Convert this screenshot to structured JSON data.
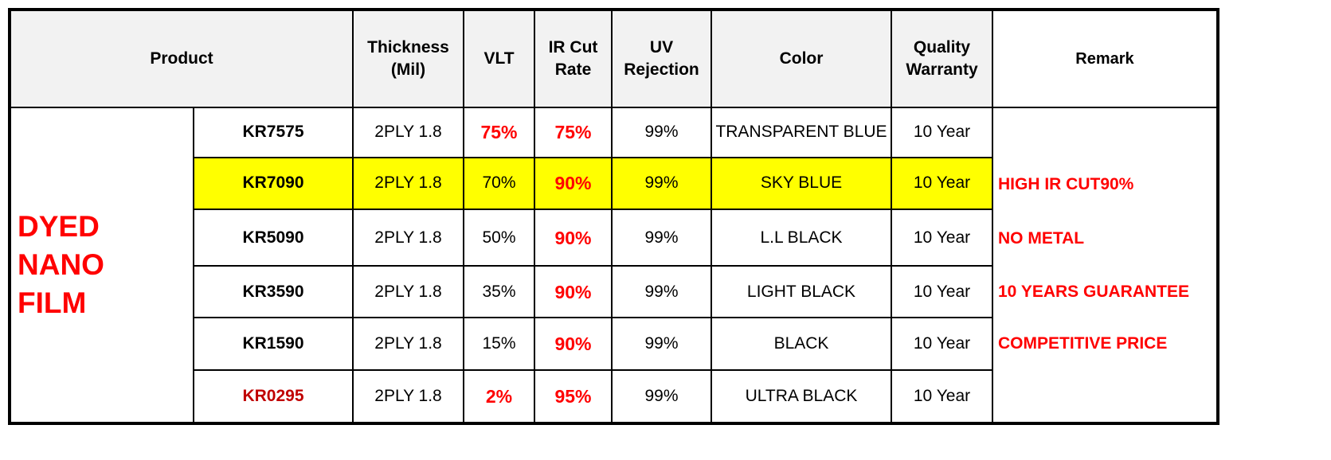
{
  "headers": {
    "product": "Product",
    "thickness_line1": "Thickness",
    "thickness_line2": "(Mil)",
    "vlt": "VLT",
    "ircut_line1": "IR Cut",
    "ircut_line2": "Rate",
    "uv_line1": "UV",
    "uv_line2": "Rejection",
    "color": "Color",
    "warranty_line1": "Quality",
    "warranty_line2": "Warranty",
    "remark": "Remark"
  },
  "category": {
    "line1": "DYED",
    "line2": "NANO",
    "line3": "FILM"
  },
  "rows": [
    {
      "code": "KR7575",
      "thickness": "2PLY 1.8",
      "vlt": "75%",
      "ircut": "75%",
      "uv": "99%",
      "color": "TRANSPARENT BLUE",
      "warranty": "10 Year"
    },
    {
      "code": "KR7090",
      "thickness": "2PLY 1.8",
      "vlt": "70%",
      "ircut": "90%",
      "uv": "99%",
      "color": "SKY BLUE",
      "warranty": "10 Year"
    },
    {
      "code": "KR5090",
      "thickness": "2PLY 1.8",
      "vlt": "50%",
      "ircut": "90%",
      "uv": "99%",
      "color": "L.L BLACK",
      "warranty": "10 Year"
    },
    {
      "code": "KR3590",
      "thickness": "2PLY 1.8",
      "vlt": "35%",
      "ircut": "90%",
      "uv": "99%",
      "color": "LIGHT BLACK",
      "warranty": "10 Year"
    },
    {
      "code": "KR1590",
      "thickness": "2PLY 1.8",
      "vlt": "15%",
      "ircut": "90%",
      "uv": "99%",
      "color": "BLACK",
      "warranty": "10 Year"
    },
    {
      "code": "KR0295",
      "thickness": "2PLY 1.8",
      "vlt": "2%",
      "ircut": "95%",
      "uv": "99%",
      "color": "ULTRA BLACK",
      "warranty": "10 Year"
    }
  ],
  "remarks": [
    "HIGH IR CUT90%",
    "NO METAL",
    "10 YEARS GUARANTEE",
    "COMPETITIVE PRICE"
  ],
  "colors": {
    "header_text": "#c00000",
    "header_bg": "#f2f2f2",
    "highlight_row": "#ffff00",
    "emphasis_red": "#ff0000"
  }
}
